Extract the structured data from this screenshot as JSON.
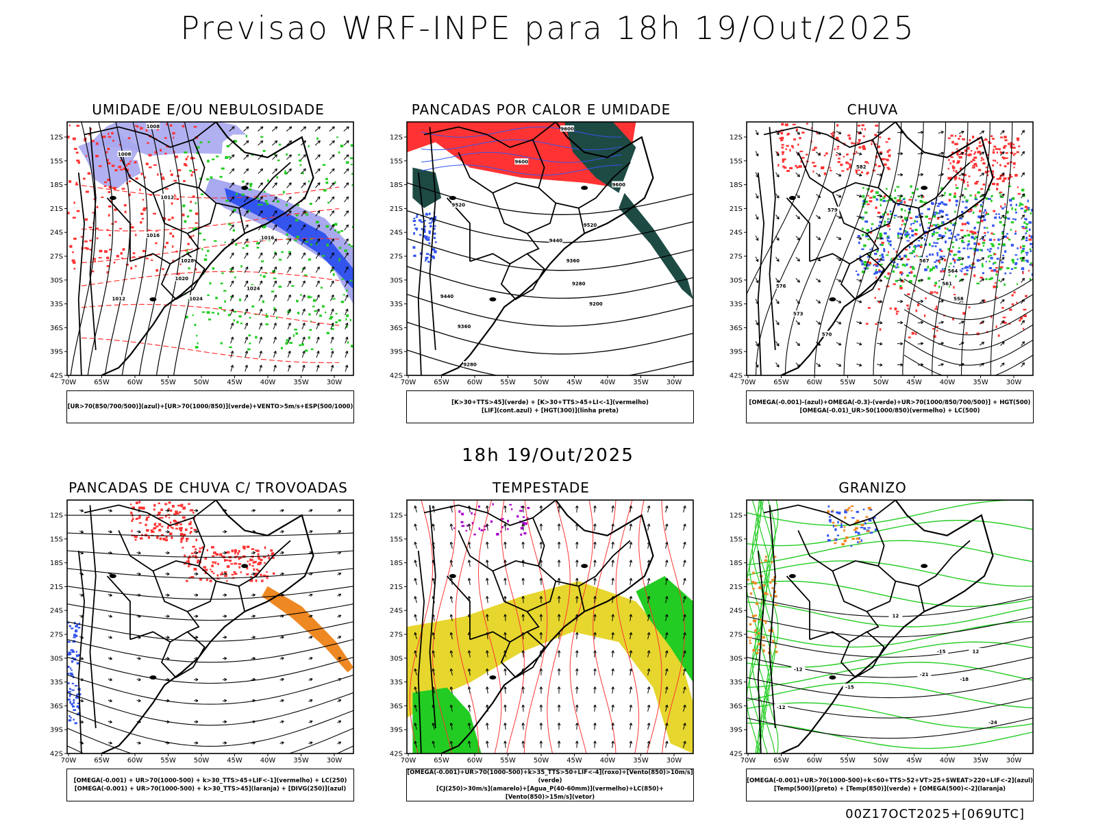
{
  "title": "Previsao WRF-INPE  para 18h 19/Out/2025",
  "mid_title": "18h 19/Out/2025",
  "footer": "00Z17OCT2025+[069UTC]",
  "axes": {
    "lat_ticks": [
      "12S",
      "15S",
      "18S",
      "21S",
      "24S",
      "27S",
      "30S",
      "33S",
      "36S",
      "39S",
      "42S"
    ],
    "lon_ticks": [
      "70W",
      "65W",
      "60W",
      "55W",
      "50W",
      "45W",
      "40W",
      "35W",
      "30W"
    ]
  },
  "colors": {
    "blue": "#3355ee",
    "lightblue": "#a9a9f0",
    "green": "#22cc22",
    "red": "#ff3333",
    "darkgreen": "#1e4a44",
    "orange": "#ee8822",
    "yellow": "#e6d62e",
    "purple": "#aa00cc"
  },
  "panels": [
    {
      "title": "UMIDADE E/OU NEBULOSIDADE",
      "legend": [
        "[UR>70(850/700/500)](azul)+[UR>70(1000/850)](verde)+VENTO>5m/s+ESP(500/1000)"
      ],
      "contour_labels": [
        "1008",
        "1008",
        "1012",
        "1016",
        "1020",
        "1024",
        "1028",
        "1016",
        "1024",
        "1012"
      ]
    },
    {
      "title": "PANCADAS POR CALOR E UMIDADE",
      "legend": [
        "[K>30+TTS>45](verde) + [K>30+TTS>45+LI<-1](vermelho)",
        "[LIF](cont.azul) + [HGT(300)](linha preta)"
      ],
      "contour_labels": [
        "9600",
        "9600",
        "9600",
        "9520",
        "9520",
        "9440",
        "9360",
        "9280",
        "9200",
        "9440",
        "9360",
        "9280"
      ]
    },
    {
      "title": "CHUVA",
      "legend": [
        "[OMEGA(-0.001)-(azul)+OMEGA(-0.3)-(verde)+UR>70(1000/850/700/500)] + HGT(500)",
        "[OMEGA(-0.01)_UR>50(1000/850)(vermelho) + LC(500)"
      ],
      "contour_labels": [
        "582",
        "579",
        "576",
        "573",
        "570",
        "567",
        "564",
        "561",
        "558"
      ]
    },
    {
      "title": "PANCADAS DE CHUVA C/ TROVOADAS",
      "legend": [
        "[OMEGA(-0.001) + UR>70(1000-500) + k>30_TTS>45+LIF<-1](vermelho) + LC(250)",
        "[OMEGA(-0.001) + UR>70(1000-500) + k>30_TTS>45](laranja) + [DIVG(250)](azul)"
      ],
      "contour_labels": []
    },
    {
      "title": "TEMPESTADE",
      "legend": [
        "[OMEGA(-0.001)+UR>70(1000-500)+k>35_TTS>50+LIF<-4](roxo)+[Vento(850)>10m/s](verde)",
        "[CJ(250)>30m/s](amarelo)+[Agua_P(40-60mm)](vermelho)+LC(850)+[Vento(850)>15m/s](vetor)"
      ],
      "contour_labels": []
    },
    {
      "title": "GRANIZO",
      "legend": [
        "[OMEGA(-0.001)+UR>70(1000-500)+k<60+TTS>52+VT>25+SWEAT>220+LIF<-2](azul)",
        "[Temp(500)](preto) + [Temp(850)](verde) + [OMEGA(500)<-2](laranja)"
      ],
      "contour_labels": [
        "12",
        "-12",
        "-15",
        "12",
        "-18",
        "-21",
        "-15",
        "-24",
        "-12"
      ]
    }
  ]
}
